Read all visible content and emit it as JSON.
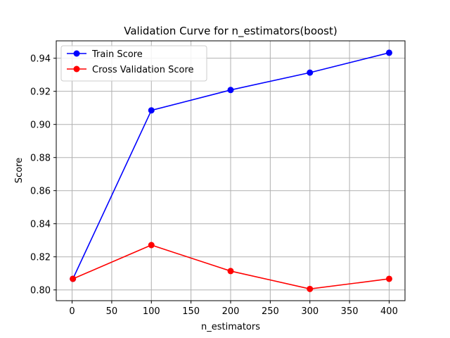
{
  "chart_data": {
    "type": "line",
    "title": "Validation Curve for n_estimators(boost)",
    "xlabel": "n_estimators",
    "ylabel": "Score",
    "xlim": [
      -20,
      420
    ],
    "ylim": [
      0.7935,
      0.9505
    ],
    "xticks": [
      0,
      50,
      100,
      150,
      200,
      250,
      300,
      350,
      400
    ],
    "yticks": [
      0.8,
      0.82,
      0.84,
      0.86,
      0.88,
      0.9,
      0.92,
      0.94
    ],
    "grid": true,
    "legend_position": "upper-left",
    "x": [
      1,
      100,
      200,
      300,
      400
    ],
    "series": [
      {
        "name": "Train Score",
        "color": "#0000ff",
        "values": [
          0.8067,
          0.9085,
          0.9208,
          0.9313,
          0.9433
        ]
      },
      {
        "name": "Cross Validation Score",
        "color": "#ff0000",
        "values": [
          0.8067,
          0.8271,
          0.8114,
          0.8006,
          0.8067
        ]
      }
    ]
  }
}
